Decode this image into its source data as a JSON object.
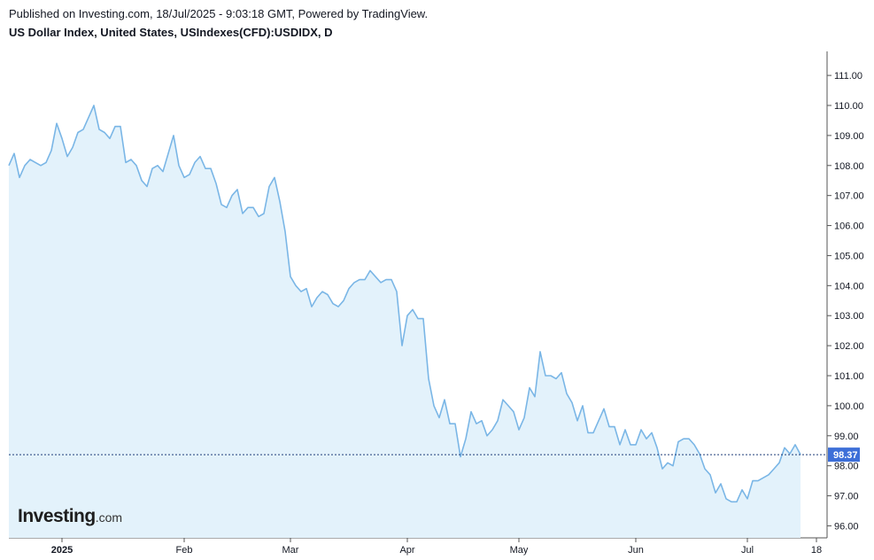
{
  "header": {
    "published": "Published on Investing.com, 18/Jul/2025 - 9:03:18 GMT, Powered by TradingView.",
    "title": "US Dollar Index, United States, USIndexes(CFD):USDIDX, D"
  },
  "logo": {
    "main": "Investing",
    "suffix": ".com"
  },
  "colors": {
    "line": "#7ab6e6",
    "fill": "#e3f2fb",
    "last_price_bg": "#3d6fd8",
    "last_price_line": "#1f3e7a"
  },
  "chart_data": {
    "type": "area",
    "ylim": [
      95.6,
      111.8
    ],
    "yticks": [
      "96.00",
      "97.00",
      "98.00",
      "99.00",
      "100.00",
      "101.00",
      "102.00",
      "103.00",
      "104.00",
      "105.00",
      "106.00",
      "107.00",
      "108.00",
      "109.00",
      "110.00",
      "111.00"
    ],
    "x_labels": [
      {
        "label": "2025",
        "bold": true,
        "index": 10
      },
      {
        "label": "Feb",
        "bold": false,
        "index": 33
      },
      {
        "label": "Mar",
        "bold": false,
        "index": 53
      },
      {
        "label": "Apr",
        "bold": false,
        "index": 75
      },
      {
        "label": "May",
        "bold": false,
        "index": 96
      },
      {
        "label": "Jun",
        "bold": false,
        "index": 118
      },
      {
        "label": "Jul",
        "bold": false,
        "index": 139
      },
      {
        "label": "18",
        "bold": false,
        "index": 152
      }
    ],
    "last_price": "98.37",
    "values": [
      108.0,
      108.4,
      107.6,
      108.0,
      108.2,
      108.1,
      108.0,
      108.1,
      108.5,
      109.4,
      108.9,
      108.3,
      108.6,
      109.1,
      109.2,
      109.6,
      110.0,
      109.2,
      109.1,
      108.9,
      109.3,
      109.3,
      108.1,
      108.2,
      108.0,
      107.5,
      107.3,
      107.9,
      108.0,
      107.8,
      108.4,
      109.0,
      108.0,
      107.6,
      107.7,
      108.1,
      108.3,
      107.9,
      107.9,
      107.4,
      106.7,
      106.6,
      107.0,
      107.2,
      106.4,
      106.6,
      106.6,
      106.3,
      106.4,
      107.3,
      107.6,
      106.8,
      105.8,
      104.3,
      104.0,
      103.8,
      103.9,
      103.3,
      103.6,
      103.8,
      103.7,
      103.4,
      103.3,
      103.5,
      103.9,
      104.1,
      104.2,
      104.2,
      104.5,
      104.3,
      104.1,
      104.2,
      104.2,
      103.8,
      102.0,
      103.0,
      103.2,
      102.9,
      102.9,
      100.9,
      100.0,
      99.6,
      100.2,
      99.4,
      99.4,
      98.3,
      98.9,
      99.8,
      99.4,
      99.5,
      99.0,
      99.2,
      99.5,
      100.2,
      100.0,
      99.8,
      99.2,
      99.6,
      100.6,
      100.3,
      101.8,
      101.0,
      101.0,
      100.9,
      101.1,
      100.4,
      100.1,
      99.5,
      100.0,
      99.1,
      99.1,
      99.5,
      99.9,
      99.3,
      99.3,
      98.7,
      99.2,
      98.7,
      98.7,
      99.2,
      98.9,
      99.1,
      98.6,
      97.9,
      98.1,
      98.0,
      98.8,
      98.9,
      98.9,
      98.7,
      98.4,
      97.9,
      97.7,
      97.1,
      97.4,
      96.9,
      96.8,
      96.8,
      97.2,
      96.9,
      97.5,
      97.5,
      97.6,
      97.7,
      97.9,
      98.1,
      98.6,
      98.4,
      98.7,
      98.37
    ]
  }
}
